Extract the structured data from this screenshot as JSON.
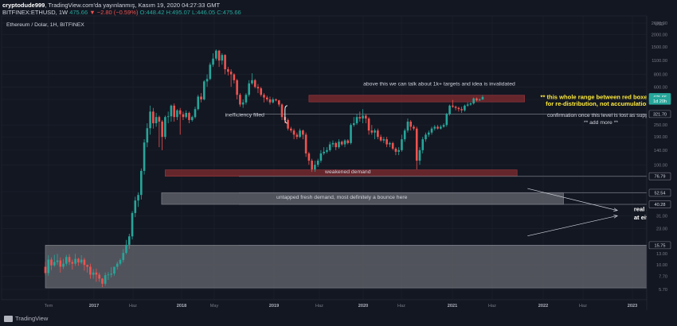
{
  "header": {
    "author": "cryptodude999",
    "published": "TradingView.com'da yayınlanmış, Kasım 19, 2020 04:27:33 GMT",
    "symbol": "BITFINEX:ETHUSD, 1W",
    "last": "475.66",
    "change": "▼ −2.80 (−0.59%)",
    "ohlc": "O:448.42 H:495.07 L:446.05 C:475.66"
  },
  "footer": {
    "brand": "TradingView"
  },
  "colors": {
    "background": "#131722",
    "up": "#26a69a",
    "down": "#ef5350",
    "red_box": "#7a2a2e",
    "gray_box": "#5d5e66",
    "annotation_yellow": "#ffeb3b",
    "text": "#d1d4dc"
  },
  "chart_data": {
    "type": "candlestick",
    "title": "Ethereum / Dolar, 1H, BITFINEX",
    "scale": "log",
    "ylim": [
      5.2,
      2700
    ],
    "y_ticks": [
      2600,
      2000,
      1500,
      1100,
      800,
      600,
      450,
      250,
      190,
      140,
      100,
      54,
      31,
      23,
      13,
      10,
      7.7,
      5.7
    ],
    "y_unit": "USD",
    "x_ticks": [
      "Tem",
      "2017",
      "Haz",
      "2018",
      "May",
      "2019",
      "Haz",
      "2020",
      "Haz",
      "2021",
      "Haz",
      "2022",
      "Haz",
      "2023"
    ],
    "price_labels": [
      {
        "value": 475.66,
        "text": "475.66",
        "style": "current"
      },
      {
        "value": 435,
        "text": "1d 20h",
        "style": "countdown"
      },
      {
        "value": 321.7,
        "text": "321.70",
        "style": "line"
      },
      {
        "value": 76.79,
        "text": "76.79",
        "style": "line"
      },
      {
        "value": 52.54,
        "text": "52.54",
        "style": "line"
      },
      {
        "value": 40.28,
        "text": "40.28",
        "style": "line"
      },
      {
        "value": 15.75,
        "text": "15.75",
        "style": "line"
      }
    ],
    "h_lines": [
      321.7,
      76.79,
      52.54,
      40.28,
      15.75
    ],
    "candles": [
      [
        9.6,
        8.3,
        10.7,
        7.9
      ],
      [
        8.3,
        11.3,
        12.5,
        7.8
      ],
      [
        11.3,
        9.9,
        11.9,
        8.9
      ],
      [
        9.9,
        10.7,
        12.6,
        9.6
      ],
      [
        10.7,
        11.1,
        12.9,
        10.0
      ],
      [
        11.1,
        9.6,
        11.9,
        8.4
      ],
      [
        9.6,
        10.3,
        11.5,
        9.1
      ],
      [
        10.3,
        12.0,
        12.6,
        9.8
      ],
      [
        12.0,
        10.7,
        12.8,
        10.0
      ],
      [
        10.7,
        10.3,
        11.3,
        9.0
      ],
      [
        10.3,
        11.5,
        12.9,
        9.8
      ],
      [
        11.5,
        10.6,
        11.8,
        9.8
      ],
      [
        10.6,
        11.3,
        12.5,
        10.2
      ],
      [
        11.3,
        10.0,
        11.8,
        8.8
      ],
      [
        10.0,
        9.6,
        10.1,
        8.4
      ],
      [
        9.6,
        8.0,
        10.3,
        7.3
      ],
      [
        8.0,
        8.4,
        9.1,
        7.3
      ],
      [
        8.4,
        8.0,
        9.2,
        6.8
      ],
      [
        8.0,
        7.3,
        8.4,
        6.8
      ],
      [
        7.3,
        6.5,
        7.4,
        6.0
      ],
      [
        6.5,
        7.9,
        8.4,
        6.2
      ],
      [
        7.9,
        8.0,
        8.5,
        7.1
      ],
      [
        8.0,
        8.2,
        9.5,
        7.5
      ],
      [
        8.2,
        9.6,
        9.6,
        7.8
      ],
      [
        9.6,
        10.3,
        10.8,
        9.0
      ],
      [
        10.3,
        11.2,
        11.6,
        9.9
      ],
      [
        11.2,
        13.2,
        14.4,
        10.6
      ],
      [
        13.2,
        15.9,
        17.8,
        12.8
      ],
      [
        15.9,
        19.3,
        20.5,
        14.5
      ],
      [
        19.3,
        33.0,
        34.5,
        18.0
      ],
      [
        33.0,
        44.0,
        48.0,
        30.0
      ],
      [
        44.0,
        50.0,
        53.0,
        38.0
      ],
      [
        50.0,
        87.0,
        92.0,
        45.0
      ],
      [
        87.0,
        167.0,
        180.0,
        80.0
      ],
      [
        167.0,
        232.0,
        260.0,
        150.0
      ],
      [
        232.0,
        340.0,
        390.0,
        200.0
      ],
      [
        340.0,
        260.0,
        370.0,
        230.0
      ],
      [
        260.0,
        300.0,
        330.0,
        240.0
      ],
      [
        300.0,
        270.0,
        310.0,
        150.0
      ],
      [
        270.0,
        190.0,
        280.0,
        140.0
      ],
      [
        190.0,
        300.0,
        310.0,
        180.0
      ],
      [
        300.0,
        305.0,
        340.0,
        260.0
      ],
      [
        305.0,
        390.0,
        400.0,
        270.0
      ],
      [
        390.0,
        300.0,
        410.0,
        270.0
      ],
      [
        300.0,
        350.0,
        360.0,
        280.0
      ],
      [
        350.0,
        320.0,
        370.0,
        200.0
      ],
      [
        320.0,
        300.0,
        340.0,
        280.0
      ],
      [
        300.0,
        330.0,
        350.0,
        290.0
      ],
      [
        330.0,
        280.0,
        340.0,
        260.0
      ],
      [
        280.0,
        300.0,
        310.0,
        270.0
      ],
      [
        300.0,
        360.0,
        380.0,
        290.0
      ],
      [
        360.0,
        480.0,
        500.0,
        350.0
      ],
      [
        480.0,
        450.0,
        520.0,
        420.0
      ],
      [
        450.0,
        680.0,
        700.0,
        440.0
      ],
      [
        680.0,
        720.0,
        800.0,
        600.0
      ],
      [
        720.0,
        1000.0,
        1050.0,
        700.0
      ],
      [
        1000.0,
        1150.0,
        1300.0,
        950.0
      ],
      [
        1150.0,
        1380.0,
        1420.0,
        1100.0
      ],
      [
        1380.0,
        1100.0,
        1400.0,
        950.0
      ],
      [
        1100.0,
        1250.0,
        1300.0,
        1000.0
      ],
      [
        1250.0,
        900.0,
        1270.0,
        800.0
      ],
      [
        900.0,
        850.0,
        950.0,
        780.0
      ],
      [
        850.0,
        800.0,
        900.0,
        600.0
      ],
      [
        800.0,
        700.0,
        820.0,
        650.0
      ],
      [
        700.0,
        500.0,
        720.0,
        450.0
      ],
      [
        500.0,
        400.0,
        520.0,
        380.0
      ],
      [
        400.0,
        420.0,
        450.0,
        370.0
      ],
      [
        420.0,
        500.0,
        520.0,
        400.0
      ],
      [
        500.0,
        650.0,
        700.0,
        480.0
      ],
      [
        650.0,
        700.0,
        820.0,
        630.0
      ],
      [
        700.0,
        600.0,
        720.0,
        580.0
      ],
      [
        600.0,
        580.0,
        640.0,
        520.0
      ],
      [
        580.0,
        500.0,
        600.0,
        480.0
      ],
      [
        500.0,
        470.0,
        520.0,
        420.0
      ],
      [
        470.0,
        450.0,
        490.0,
        430.0
      ],
      [
        450.0,
        420.0,
        480.0,
        400.0
      ],
      [
        420.0,
        450.0,
        470.0,
        410.0
      ],
      [
        450.0,
        440.0,
        460.0,
        430.0
      ],
      [
        440.0,
        400.0,
        445.0,
        380.0
      ],
      [
        400.0,
        300.0,
        410.0,
        280.0
      ],
      [
        300.0,
        280.0,
        310.0,
        260.0
      ],
      [
        280.0,
        230.0,
        290.0,
        220.0
      ],
      [
        230.0,
        220.0,
        240.0,
        210.0
      ],
      [
        220.0,
        200.0,
        230.0,
        180.0
      ],
      [
        200.0,
        190.0,
        210.0,
        180.0
      ],
      [
        190.0,
        220.0,
        230.0,
        185.0
      ],
      [
        220.0,
        200.0,
        225.0,
        180.0
      ],
      [
        200.0,
        130.0,
        210.0,
        120.0
      ],
      [
        130.0,
        110.0,
        135.0,
        100.0
      ],
      [
        110.0,
        90.0,
        115.0,
        85.0
      ],
      [
        90.0,
        100.0,
        110.0,
        85.0
      ],
      [
        100.0,
        110.0,
        115.0,
        95.0
      ],
      [
        110.0,
        130.0,
        140.0,
        105.0
      ],
      [
        130.0,
        135.0,
        150.0,
        125.0
      ],
      [
        135.0,
        140.0,
        150.0,
        130.0
      ],
      [
        140.0,
        160.0,
        170.0,
        135.0
      ],
      [
        160.0,
        165.0,
        175.0,
        150.0
      ],
      [
        165.0,
        150.0,
        170.0,
        140.0
      ],
      [
        150.0,
        170.0,
        180.0,
        145.0
      ],
      [
        170.0,
        160.0,
        175.0,
        155.0
      ],
      [
        160.0,
        175.0,
        180.0,
        150.0
      ],
      [
        175.0,
        165.0,
        180.0,
        160.0
      ],
      [
        165.0,
        250.0,
        260.0,
        160.0
      ],
      [
        250.0,
        260.0,
        300.0,
        240.0
      ],
      [
        260.0,
        300.0,
        320.0,
        250.0
      ],
      [
        300.0,
        290.0,
        340.0,
        270.0
      ],
      [
        290.0,
        310.0,
        360.0,
        260.0
      ],
      [
        310.0,
        290.0,
        320.0,
        260.0
      ],
      [
        290.0,
        220.0,
        300.0,
        200.0
      ],
      [
        220.0,
        210.0,
        250.0,
        200.0
      ],
      [
        210.0,
        220.0,
        230.0,
        180.0
      ],
      [
        220.0,
        190.0,
        230.0,
        180.0
      ],
      [
        190.0,
        175.0,
        200.0,
        170.0
      ],
      [
        175.0,
        180.0,
        190.0,
        165.0
      ],
      [
        180.0,
        160.0,
        190.0,
        150.0
      ],
      [
        160.0,
        165.0,
        170.0,
        150.0
      ],
      [
        165.0,
        145.0,
        170.0,
        140.0
      ],
      [
        145.0,
        135.0,
        150.0,
        125.0
      ],
      [
        135.0,
        140.0,
        150.0,
        125.0
      ],
      [
        140.0,
        180.0,
        200.0,
        135.0
      ],
      [
        180.0,
        220.0,
        230.0,
        170.0
      ],
      [
        220.0,
        270.0,
        290.0,
        210.0
      ],
      [
        270.0,
        240.0,
        280.0,
        220.0
      ],
      [
        240.0,
        230.0,
        250.0,
        220.0
      ],
      [
        230.0,
        110.0,
        240.0,
        90.0
      ],
      [
        110.0,
        140.0,
        150.0,
        100.0
      ],
      [
        140.0,
        180.0,
        190.0,
        130.0
      ],
      [
        180.0,
        200.0,
        210.0,
        170.0
      ],
      [
        200.0,
        210.0,
        220.0,
        190.0
      ],
      [
        210.0,
        230.0,
        240.0,
        200.0
      ],
      [
        230.0,
        240.0,
        250.0,
        220.0
      ],
      [
        240.0,
        230.0,
        250.0,
        225.0
      ],
      [
        230.0,
        240.0,
        250.0,
        225.0
      ],
      [
        240.0,
        250.0,
        260.0,
        235.0
      ],
      [
        250.0,
        320.0,
        330.0,
        240.0
      ],
      [
        320.0,
        390.0,
        400.0,
        310.0
      ],
      [
        390.0,
        380.0,
        445.0,
        370.0
      ],
      [
        380.0,
        370.0,
        390.0,
        350.0
      ],
      [
        370.0,
        360.0,
        380.0,
        340.0
      ],
      [
        360.0,
        350.0,
        380.0,
        330.0
      ],
      [
        350.0,
        390.0,
        400.0,
        340.0
      ],
      [
        390.0,
        400.0,
        420.0,
        380.0
      ],
      [
        400.0,
        410.0,
        420.0,
        390.0
      ],
      [
        410.0,
        460.0,
        470.0,
        400.0
      ],
      [
        460.0,
        440.0,
        470.0,
        430.0
      ],
      [
        440.0,
        448.42,
        460.0,
        435.0
      ],
      [
        448.42,
        475.66,
        495.07,
        446.05
      ]
    ],
    "zones": [
      {
        "kind": "red",
        "from_bar": 88.0,
        "to_bar": 160.0,
        "top": 495.0,
        "bottom": 425.0
      },
      {
        "kind": "red",
        "from_bar": 40.0,
        "to_bar": 157.5,
        "top": 89.0,
        "bottom": 76.8
      },
      {
        "kind": "gray",
        "from_bar": 38.8,
        "to_bar": 173.0,
        "top": 52.54,
        "bottom": 40.28
      },
      {
        "kind": "gray",
        "from_bar": 0.0,
        "to_bar": 206.0,
        "top": 15.75,
        "bottom": 5.9
      }
    ],
    "annotations": [
      {
        "text": "above this we can talk about 1k+ targets and idea is invalidated",
        "bar": 131.5,
        "price": 620.0,
        "color": "#d1d4dc",
        "anchor": "middle"
      },
      {
        "text": "** this whole range between red boxes are",
        "bar": 185.5,
        "price": 455.0,
        "color": "#ffeb3b",
        "anchor": "middle"
      },
      {
        "text": "for re-distribution, not accumulation **",
        "bar": 185.5,
        "price": 390.0,
        "color": "#ffeb3b",
        "anchor": "middle"
      },
      {
        "text": "confirmation once this level is lost as support",
        "bar": 185.5,
        "price": 300.0,
        "color": "#d1d4dc",
        "anchor": "middle"
      },
      {
        "text": "** add more **",
        "bar": 185.5,
        "price": 255.0,
        "color": "#d1d4dc",
        "anchor": "middle"
      },
      {
        "text": "inefficiency filled",
        "bar": 60.0,
        "price": 305.0,
        "color": "#d1d4dc",
        "anchor": "start"
      },
      {
        "text": "weakened demand",
        "bar": 101.0,
        "price": 82.0,
        "color": "#d1d4dc",
        "anchor": "middle"
      },
      {
        "text": "untapped fresh demand, most definitely a bounce here",
        "bar": 99.0,
        "price": 46.0,
        "color": "#d1d4dc",
        "anchor": "middle"
      },
      {
        "text": "real accumulation will happen",
        "bar": 196.5,
        "price": 34.5,
        "color": "#ffffff",
        "anchor": "start"
      },
      {
        "text": "at either one of these ranges",
        "bar": 196.5,
        "price": 28.5,
        "color": "#ffffff",
        "anchor": "start"
      }
    ],
    "arrows": [
      {
        "from_bar": 161.0,
        "from_price": 58.0,
        "to_bar": 191.0,
        "to_price": 35.0
      },
      {
        "from_bar": 161.0,
        "from_price": 19.5,
        "to_bar": 191.0,
        "to_price": 31.0
      }
    ],
    "bracket": {
      "bar": 80.0,
      "top": 390.0,
      "bottom": 260.0
    }
  }
}
